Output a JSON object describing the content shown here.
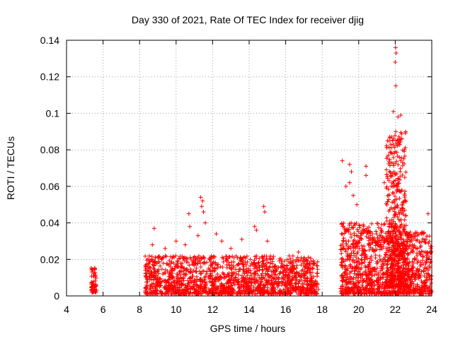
{
  "chart_data": {
    "type": "scatter",
    "title": "Day 330 of 2021, Rate Of TEC Index for receiver djig",
    "xlabel": "GPS time / hours",
    "ylabel": "ROTI / TECUs",
    "xlim": [
      4,
      24
    ],
    "ylim": [
      0,
      0.14
    ],
    "grid": true,
    "marker": "+",
    "color": "#ff0000",
    "x_ticks": [
      4,
      6,
      8,
      10,
      12,
      14,
      16,
      18,
      20,
      22,
      24
    ],
    "x_tick_labels": [
      "4",
      "6",
      "8",
      "10",
      "12",
      "14",
      "16",
      "18",
      "20",
      "22",
      "24"
    ],
    "y_ticks": [
      0,
      0.02,
      0.04,
      0.06,
      0.08,
      0.1,
      0.12,
      0.14
    ],
    "y_tick_labels": [
      "0",
      "0.02",
      "0.04",
      "0.06",
      "0.08",
      "0.1",
      "0.12",
      "0.14"
    ],
    "series": [
      {
        "name": "ROTI",
        "clusters": [
          {
            "x_start": 5.35,
            "x_end": 5.65,
            "y_min": 0.002,
            "y_max": 0.016,
            "count": 60
          },
          {
            "x_start": 8.3,
            "x_end": 17.8,
            "y_min": 0.001,
            "y_max": 0.022,
            "count": 1600
          }
        ],
        "points": [
          {
            "x": 8.8,
            "y": 0.037
          },
          {
            "x": 8.7,
            "y": 0.028
          },
          {
            "x": 9.4,
            "y": 0.026
          },
          {
            "x": 10.0,
            "y": 0.03
          },
          {
            "x": 10.5,
            "y": 0.028
          },
          {
            "x": 10.7,
            "y": 0.045
          },
          {
            "x": 10.75,
            "y": 0.038
          },
          {
            "x": 11.2,
            "y": 0.033
          },
          {
            "x": 11.35,
            "y": 0.054
          },
          {
            "x": 11.4,
            "y": 0.049
          },
          {
            "x": 11.5,
            "y": 0.046
          },
          {
            "x": 11.45,
            "y": 0.052
          },
          {
            "x": 11.6,
            "y": 0.04
          },
          {
            "x": 12.2,
            "y": 0.034
          },
          {
            "x": 12.5,
            "y": 0.03
          },
          {
            "x": 13.0,
            "y": 0.026
          },
          {
            "x": 13.6,
            "y": 0.031
          },
          {
            "x": 14.3,
            "y": 0.038
          },
          {
            "x": 14.4,
            "y": 0.036
          },
          {
            "x": 14.8,
            "y": 0.049
          },
          {
            "x": 14.85,
            "y": 0.046
          },
          {
            "x": 15.0,
            "y": 0.03
          },
          {
            "x": 16.7,
            "y": 0.024
          },
          {
            "x": 17.1,
            "y": 0.02
          }
        ]
      }
    ],
    "late_segments": [
      {
        "x_start": 19.0,
        "x_end": 22.5,
        "y_min": 0.001,
        "y_max": 0.04,
        "count": 900
      },
      {
        "x_start": 21.5,
        "x_end": 22.6,
        "y_min": 0.005,
        "y_max": 0.09,
        "count": 450
      },
      {
        "x_start": 22.5,
        "x_end": 24.0,
        "y_min": 0.001,
        "y_max": 0.035,
        "count": 350
      }
    ],
    "late_points": [
      {
        "x": 19.1,
        "y": 0.074
      },
      {
        "x": 19.5,
        "y": 0.072
      },
      {
        "x": 19.6,
        "y": 0.068
      },
      {
        "x": 19.5,
        "y": 0.062
      },
      {
        "x": 19.3,
        "y": 0.06
      },
      {
        "x": 19.7,
        "y": 0.055
      },
      {
        "x": 19.9,
        "y": 0.05
      },
      {
        "x": 20.4,
        "y": 0.071
      },
      {
        "x": 20.4,
        "y": 0.066
      },
      {
        "x": 21.4,
        "y": 0.062
      },
      {
        "x": 21.7,
        "y": 0.087
      },
      {
        "x": 21.85,
        "y": 0.085
      },
      {
        "x": 21.9,
        "y": 0.101
      },
      {
        "x": 22.0,
        "y": 0.128
      },
      {
        "x": 22.02,
        "y": 0.136
      },
      {
        "x": 22.05,
        "y": 0.133
      },
      {
        "x": 22.03,
        "y": 0.115
      },
      {
        "x": 22.15,
        "y": 0.098
      },
      {
        "x": 22.3,
        "y": 0.099
      },
      {
        "x": 22.5,
        "y": 0.08
      },
      {
        "x": 23.8,
        "y": 0.045
      }
    ]
  }
}
